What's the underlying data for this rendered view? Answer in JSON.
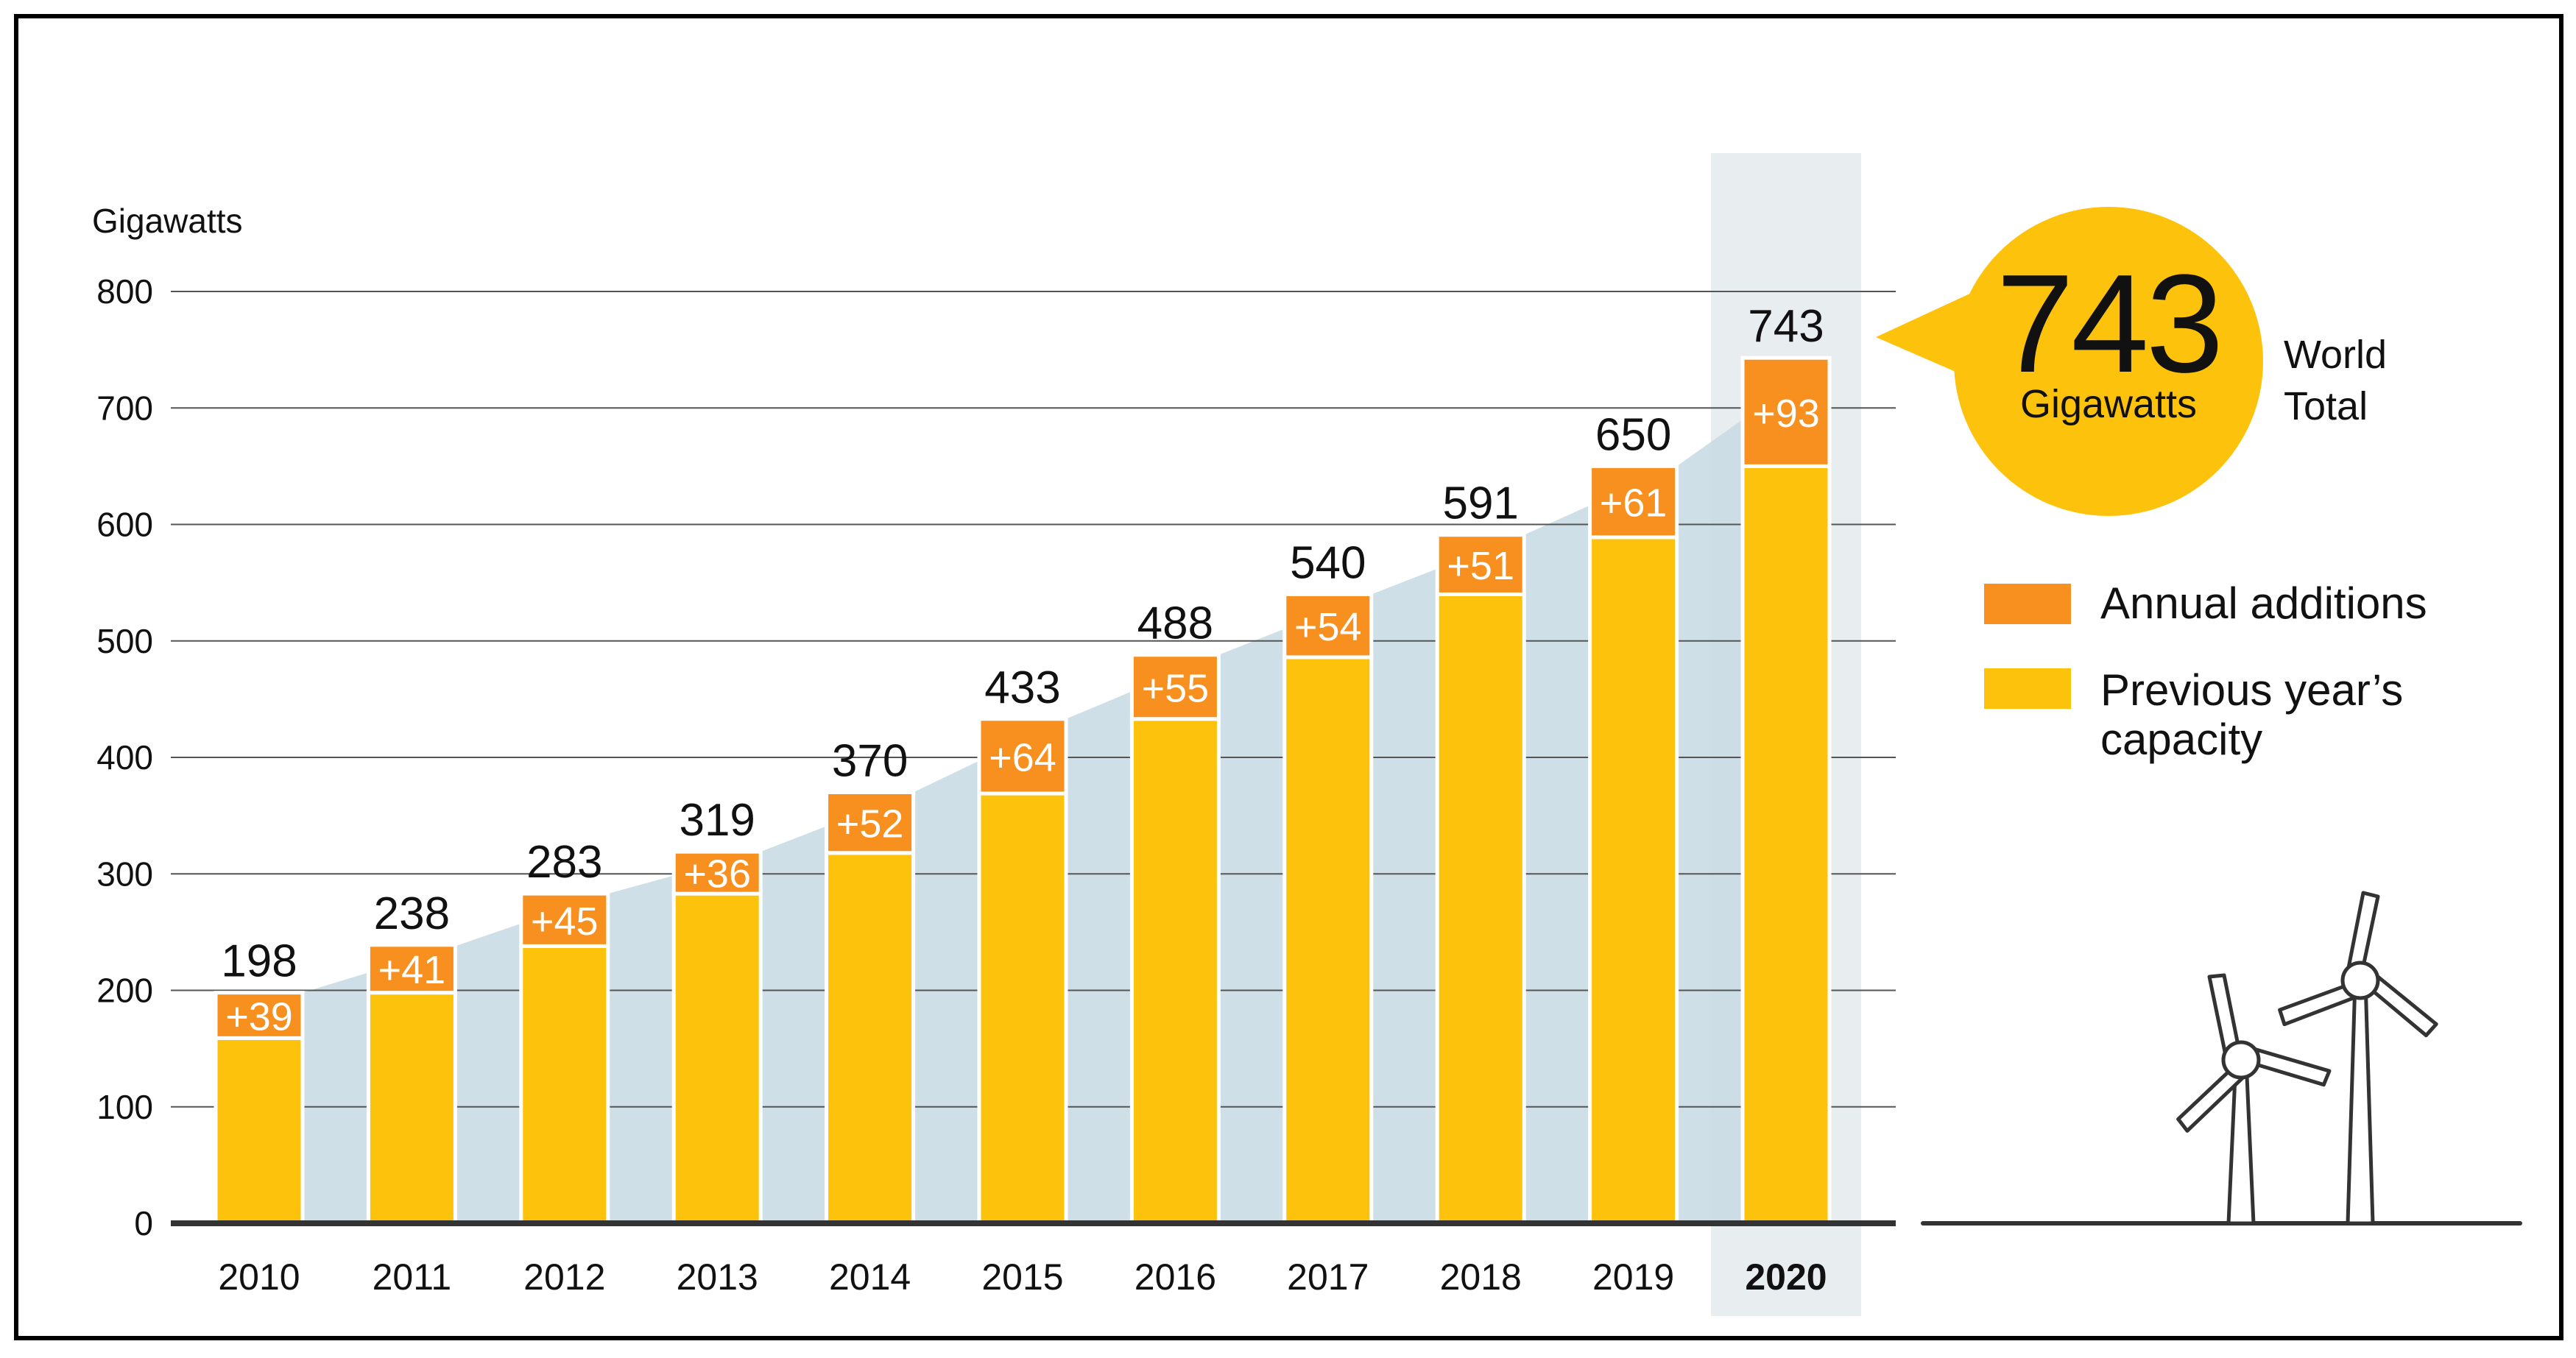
{
  "colors": {
    "annual": "#f7901e",
    "previous": "#fdc20b",
    "area": "#c7d9e3",
    "highlight": "#e8edf0",
    "grid": "#555555",
    "axis": "#333333",
    "text": "#111111",
    "frame": "#000000",
    "bubble": "#fdc20b"
  },
  "chart_data": {
    "type": "bar",
    "stacked": true,
    "ylabel": "Gigawatts",
    "ylim": [
      0,
      800
    ],
    "yticks": [
      0,
      100,
      200,
      300,
      400,
      500,
      600,
      700,
      800
    ],
    "grid": true,
    "categories": [
      "2010",
      "2011",
      "2012",
      "2013",
      "2014",
      "2015",
      "2016",
      "2017",
      "2018",
      "2019",
      "2020"
    ],
    "highlight_category": "2020",
    "series": [
      {
        "name": "Previous year’s capacity",
        "values": [
          159,
          198,
          238,
          283,
          318,
          369,
          433,
          486,
          540,
          589,
          650
        ]
      },
      {
        "name": "Annual additions",
        "values": [
          39,
          41,
          45,
          36,
          52,
          64,
          55,
          54,
          51,
          61,
          93
        ]
      }
    ],
    "addition_labels": [
      "+39",
      "+41",
      "+45",
      "+36",
      "+52",
      "+64",
      "+55",
      "+54",
      "+51",
      "+61",
      "+93"
    ],
    "totals": [
      198,
      238,
      283,
      319,
      370,
      433,
      488,
      540,
      591,
      650,
      743
    ],
    "total_labels": [
      "198",
      "238",
      "283",
      "319",
      "370",
      "433",
      "488",
      "540",
      "591",
      "650",
      "743"
    ],
    "legend": [
      {
        "label": "Annual additions",
        "color_key": "annual"
      },
      {
        "label_line1": "Previous year’s",
        "label_line2": "capacity",
        "color_key": "previous"
      }
    ],
    "callout": {
      "value": "743",
      "unit": "Gigawatts",
      "label_line1": "World",
      "label_line2": "Total"
    }
  }
}
